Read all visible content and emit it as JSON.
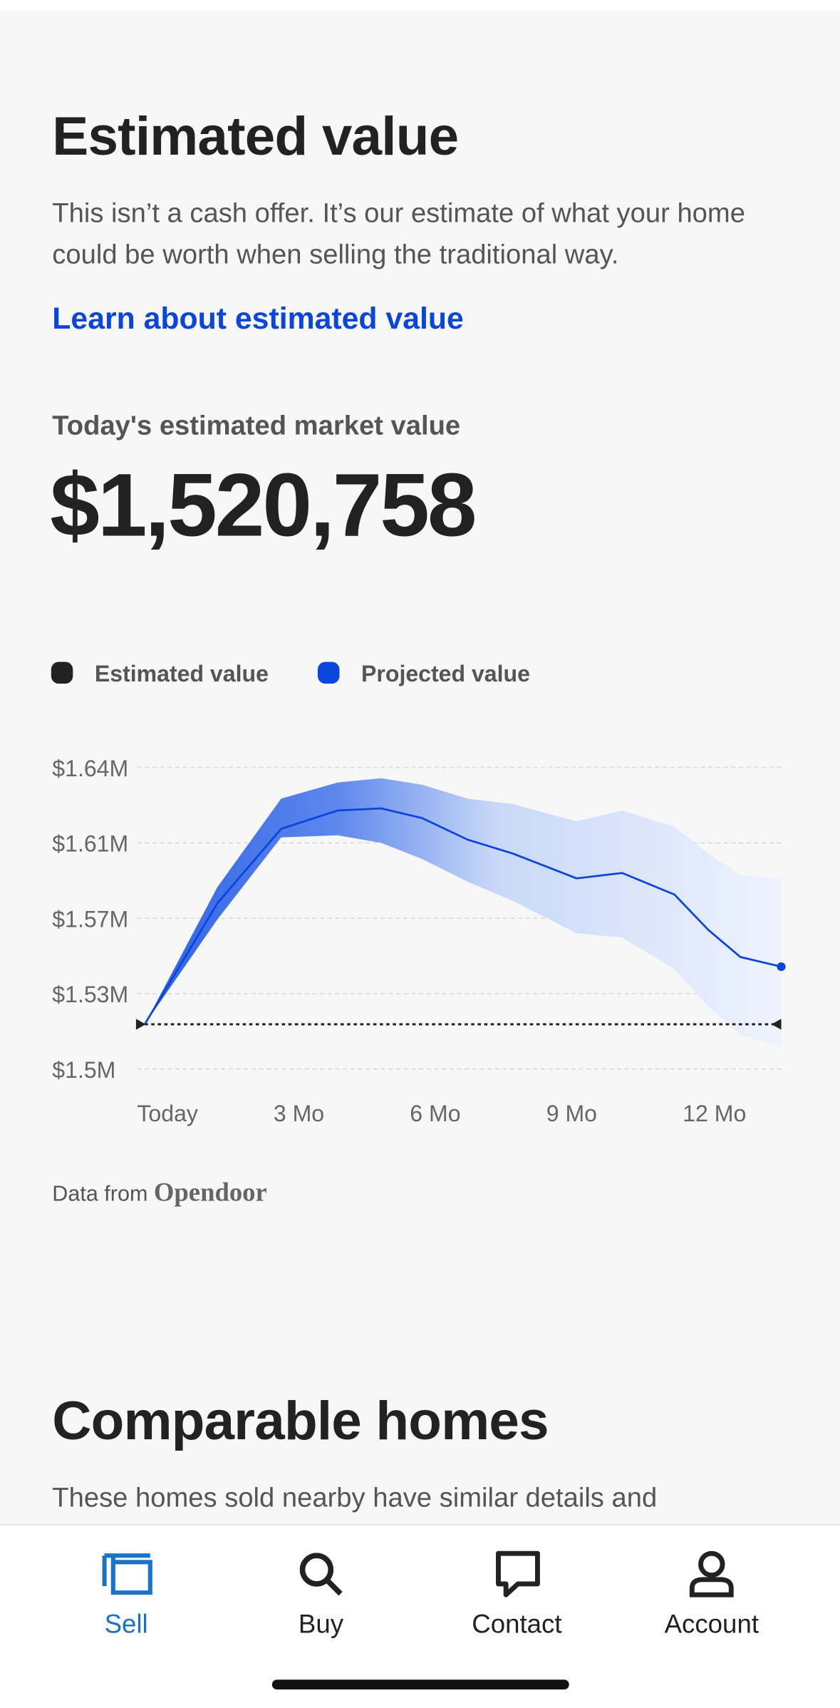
{
  "header": {
    "title": "Estimated value",
    "description": "This isn’t a cash offer. It’s our estimate of what your home could be worth when selling the traditional way.",
    "link": "Learn about estimated value"
  },
  "value_label": "Today's estimated market value",
  "value": "$1,520,758",
  "chart_data": {
    "type": "line",
    "series": [
      {
        "name": "Estimated value",
        "color": "#222222",
        "x": [
          0
        ],
        "values": [
          1520758
        ]
      },
      {
        "name": "Projected value",
        "color": "#0a45dc",
        "x": [
          0,
          1.6,
          3,
          4.24,
          5.2,
          6.1,
          7.1,
          8.1,
          9.5,
          10.5,
          11.65,
          12.4,
          13.1,
          14
        ],
        "values": [
          1520758,
          1577000,
          1611500,
          1620000,
          1621000,
          1616500,
          1606500,
          1600000,
          1588500,
          1591000,
          1581000,
          1564500,
          1552000,
          1547500
        ],
        "upper": [
          1520758,
          1584500,
          1625500,
          1633000,
          1635000,
          1632000,
          1625500,
          1623000,
          1615000,
          1620000,
          1612500,
          1600000,
          1590000,
          1588500
        ],
        "lower": [
          1520758,
          1569500,
          1607500,
          1608500,
          1605000,
          1597500,
          1587000,
          1578000,
          1563000,
          1561000,
          1546500,
          1529000,
          1516000,
          1510000
        ]
      }
    ],
    "xlim": [
      0,
      14
    ],
    "xticks": [
      {
        "value": 0,
        "label": "Today"
      },
      {
        "value": 3,
        "label": "3 Mo"
      },
      {
        "value": 6,
        "label": "6 Mo"
      },
      {
        "value": 9,
        "label": "9 Mo"
      },
      {
        "value": 12,
        "label": "12 Mo"
      }
    ],
    "ylim": [
      1500000,
      1640000
    ],
    "yticks": [
      {
        "value": 1500000,
        "label": "$1.5M"
      },
      {
        "value": 1535000,
        "label": "$1.53M"
      },
      {
        "value": 1570000,
        "label": "$1.57M"
      },
      {
        "value": 1605000,
        "label": "$1.61M"
      },
      {
        "value": 1640000,
        "label": "$1.64M"
      }
    ],
    "grid": true
  },
  "attribution": {
    "prefix": "Data from",
    "source": "Opendoor"
  },
  "section": {
    "title": "Comparable homes",
    "description": "These homes sold nearby have similar details and"
  },
  "nav": [
    {
      "label": "Sell",
      "active": true
    },
    {
      "label": "Buy"
    },
    {
      "label": "Contact"
    },
    {
      "label": "Account"
    }
  ]
}
